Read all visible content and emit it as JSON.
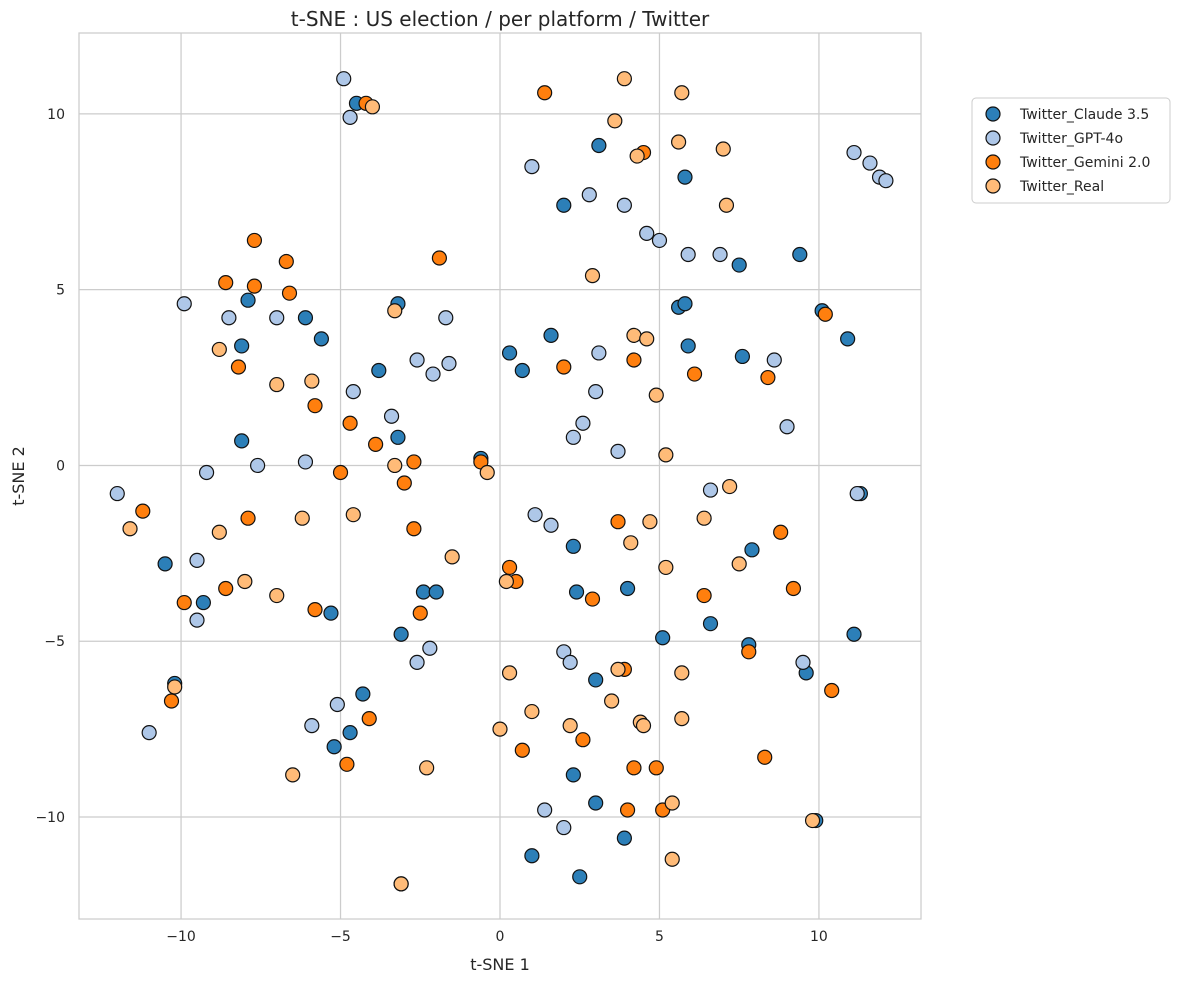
{
  "chart_data": {
    "type": "scatter",
    "title": "t-SNE : US election / per platform / Twitter",
    "xlabel": "t-SNE 1",
    "ylabel": "t-SNE 2",
    "xlim": [
      -13.2,
      13.2
    ],
    "ylim": [
      -12.9,
      12.3
    ],
    "xticks": [
      -10,
      -5,
      0,
      5,
      10
    ],
    "yticks": [
      -10,
      -5,
      0,
      5,
      10
    ],
    "xtick_labels": [
      "−10",
      "−5",
      "0",
      "5",
      "10"
    ],
    "ytick_labels": [
      "−10",
      "−5",
      "0",
      "5",
      "10"
    ],
    "grid": true,
    "legend_position": "outside-top-right",
    "series": [
      {
        "name": "Twitter_Claude 3.5",
        "color": "#2c7fb8",
        "points": [
          [
            -4.5,
            10.3
          ],
          [
            3.1,
            9.1
          ],
          [
            5.8,
            8.2
          ],
          [
            2.0,
            7.4
          ],
          [
            7.5,
            5.7
          ],
          [
            9.4,
            6.0
          ],
          [
            -7.9,
            4.7
          ],
          [
            -6.1,
            4.2
          ],
          [
            -3.2,
            4.6
          ],
          [
            -5.6,
            3.6
          ],
          [
            5.6,
            4.5
          ],
          [
            5.8,
            4.6
          ],
          [
            10.1,
            4.4
          ],
          [
            10.9,
            3.6
          ],
          [
            -8.1,
            3.4
          ],
          [
            -3.8,
            2.7
          ],
          [
            0.3,
            3.2
          ],
          [
            1.6,
            3.7
          ],
          [
            0.7,
            2.7
          ],
          [
            5.9,
            3.4
          ],
          [
            7.6,
            3.1
          ],
          [
            -8.1,
            0.7
          ],
          [
            -3.2,
            0.8
          ],
          [
            -0.6,
            0.2
          ],
          [
            -10.5,
            -2.8
          ],
          [
            -9.3,
            -3.9
          ],
          [
            -5.3,
            -4.2
          ],
          [
            -2.4,
            -3.6
          ],
          [
            -2.0,
            -3.6
          ],
          [
            2.3,
            -2.3
          ],
          [
            2.4,
            -3.6
          ],
          [
            4.0,
            -3.5
          ],
          [
            7.9,
            -2.4
          ],
          [
            -3.1,
            -4.8
          ],
          [
            5.1,
            -4.9
          ],
          [
            6.6,
            -4.5
          ],
          [
            7.8,
            -5.1
          ],
          [
            9.6,
            -5.9
          ],
          [
            11.1,
            -4.8
          ],
          [
            3.0,
            -6.1
          ],
          [
            -10.2,
            -6.2
          ],
          [
            -4.3,
            -6.5
          ],
          [
            -4.7,
            -7.6
          ],
          [
            -5.2,
            -8.0
          ],
          [
            2.3,
            -8.8
          ],
          [
            3.0,
            -9.6
          ],
          [
            3.9,
            -10.6
          ],
          [
            1.0,
            -11.1
          ],
          [
            2.5,
            -11.7
          ],
          [
            9.9,
            -10.1
          ],
          [
            11.3,
            -0.8
          ]
        ]
      },
      {
        "name": "Twitter_GPT-4o",
        "color": "#aec7e8",
        "points": [
          [
            -4.9,
            11.0
          ],
          [
            -4.7,
            9.9
          ],
          [
            1.0,
            8.5
          ],
          [
            2.8,
            7.7
          ],
          [
            3.9,
            7.4
          ],
          [
            4.6,
            6.6
          ],
          [
            5.0,
            6.4
          ],
          [
            5.9,
            6.0
          ],
          [
            6.9,
            6.0
          ],
          [
            11.1,
            8.9
          ],
          [
            11.6,
            8.6
          ],
          [
            11.9,
            8.2
          ],
          [
            12.1,
            8.1
          ],
          [
            -9.9,
            4.6
          ],
          [
            -8.5,
            4.2
          ],
          [
            -7.0,
            4.2
          ],
          [
            -1.7,
            4.2
          ],
          [
            -2.6,
            3.0
          ],
          [
            -1.6,
            2.9
          ],
          [
            -2.1,
            2.6
          ],
          [
            -4.6,
            2.1
          ],
          [
            -3.4,
            1.4
          ],
          [
            3.1,
            3.2
          ],
          [
            3.0,
            2.1
          ],
          [
            8.6,
            3.0
          ],
          [
            2.6,
            1.2
          ],
          [
            2.3,
            0.8
          ],
          [
            3.7,
            0.4
          ],
          [
            9.0,
            1.1
          ],
          [
            -9.2,
            -0.2
          ],
          [
            -7.6,
            0.0
          ],
          [
            -6.1,
            0.1
          ],
          [
            -12.0,
            -0.8
          ],
          [
            6.6,
            -0.7
          ],
          [
            11.2,
            -0.8
          ],
          [
            1.1,
            -1.4
          ],
          [
            1.6,
            -1.7
          ],
          [
            -9.5,
            -2.7
          ],
          [
            -9.5,
            -4.4
          ],
          [
            -2.2,
            -5.2
          ],
          [
            -2.6,
            -5.6
          ],
          [
            2.0,
            -5.3
          ],
          [
            2.2,
            -5.6
          ],
          [
            9.5,
            -5.6
          ],
          [
            -5.1,
            -6.8
          ],
          [
            -5.9,
            -7.4
          ],
          [
            -11.0,
            -7.6
          ],
          [
            1.4,
            -9.8
          ],
          [
            2.0,
            -10.3
          ]
        ]
      },
      {
        "name": "Twitter_Gemini 2.0",
        "color": "#ff7f0e",
        "points": [
          [
            -4.2,
            10.3
          ],
          [
            1.4,
            10.6
          ],
          [
            4.5,
            8.9
          ],
          [
            -7.7,
            6.4
          ],
          [
            -6.7,
            5.8
          ],
          [
            -8.6,
            5.2
          ],
          [
            -7.7,
            5.1
          ],
          [
            -6.6,
            4.9
          ],
          [
            -1.9,
            5.9
          ],
          [
            10.2,
            4.3
          ],
          [
            2.0,
            2.8
          ],
          [
            4.2,
            3.0
          ],
          [
            6.1,
            2.6
          ],
          [
            8.4,
            2.5
          ],
          [
            -8.2,
            2.8
          ],
          [
            -5.8,
            1.7
          ],
          [
            -4.7,
            1.2
          ],
          [
            -3.9,
            0.6
          ],
          [
            -2.7,
            0.1
          ],
          [
            -0.6,
            0.1
          ],
          [
            -5.0,
            -0.2
          ],
          [
            -3.0,
            -0.5
          ],
          [
            -11.2,
            -1.3
          ],
          [
            -7.9,
            -1.5
          ],
          [
            -2.7,
            -1.8
          ],
          [
            3.7,
            -1.6
          ],
          [
            8.8,
            -1.9
          ],
          [
            0.3,
            -2.9
          ],
          [
            0.5,
            -3.3
          ],
          [
            2.9,
            -3.8
          ],
          [
            6.4,
            -3.7
          ],
          [
            9.2,
            -3.5
          ],
          [
            -9.9,
            -3.9
          ],
          [
            -8.6,
            -3.5
          ],
          [
            -5.8,
            -4.1
          ],
          [
            -2.5,
            -4.2
          ],
          [
            3.9,
            -5.8
          ],
          [
            7.8,
            -5.3
          ],
          [
            10.4,
            -6.4
          ],
          [
            -10.3,
            -6.7
          ],
          [
            -4.1,
            -7.2
          ],
          [
            0.7,
            -8.1
          ],
          [
            2.6,
            -7.8
          ],
          [
            -4.8,
            -8.5
          ],
          [
            4.2,
            -8.6
          ],
          [
            4.9,
            -8.6
          ],
          [
            8.3,
            -8.3
          ],
          [
            4.0,
            -9.8
          ],
          [
            5.1,
            -9.8
          ],
          [
            -3.1,
            -11.9
          ]
        ]
      },
      {
        "name": "Twitter_Real",
        "color": "#ffbb78",
        "points": [
          [
            -4.0,
            10.2
          ],
          [
            3.9,
            11.0
          ],
          [
            5.7,
            10.6
          ],
          [
            3.6,
            9.8
          ],
          [
            5.6,
            9.2
          ],
          [
            4.3,
            8.8
          ],
          [
            7.0,
            9.0
          ],
          [
            7.1,
            7.4
          ],
          [
            2.9,
            5.4
          ],
          [
            -3.3,
            4.4
          ],
          [
            4.2,
            3.7
          ],
          [
            4.6,
            3.6
          ],
          [
            -8.8,
            3.3
          ],
          [
            -7.0,
            2.3
          ],
          [
            -5.9,
            2.4
          ],
          [
            4.9,
            2.0
          ],
          [
            -3.3,
            0.0
          ],
          [
            5.2,
            0.3
          ],
          [
            -0.4,
            -0.2
          ],
          [
            7.2,
            -0.6
          ],
          [
            -11.6,
            -1.8
          ],
          [
            -8.8,
            -1.9
          ],
          [
            -6.2,
            -1.5
          ],
          [
            -4.6,
            -1.4
          ],
          [
            4.7,
            -1.6
          ],
          [
            6.4,
            -1.5
          ],
          [
            -1.5,
            -2.6
          ],
          [
            4.1,
            -2.2
          ],
          [
            5.2,
            -2.9
          ],
          [
            7.5,
            -2.8
          ],
          [
            -8.0,
            -3.3
          ],
          [
            -7.0,
            -3.7
          ],
          [
            0.2,
            -3.3
          ],
          [
            0.3,
            -5.9
          ],
          [
            3.7,
            -5.8
          ],
          [
            5.7,
            -5.9
          ],
          [
            -10.2,
            -6.3
          ],
          [
            1.0,
            -7.0
          ],
          [
            2.2,
            -7.4
          ],
          [
            3.5,
            -6.7
          ],
          [
            4.4,
            -7.3
          ],
          [
            4.5,
            -7.4
          ],
          [
            5.7,
            -7.2
          ],
          [
            0.0,
            -7.5
          ],
          [
            -6.5,
            -8.8
          ],
          [
            -2.3,
            -8.6
          ],
          [
            5.4,
            -9.6
          ],
          [
            9.8,
            -10.1
          ],
          [
            5.4,
            -11.2
          ],
          [
            -3.1,
            -11.9
          ]
        ]
      }
    ]
  }
}
